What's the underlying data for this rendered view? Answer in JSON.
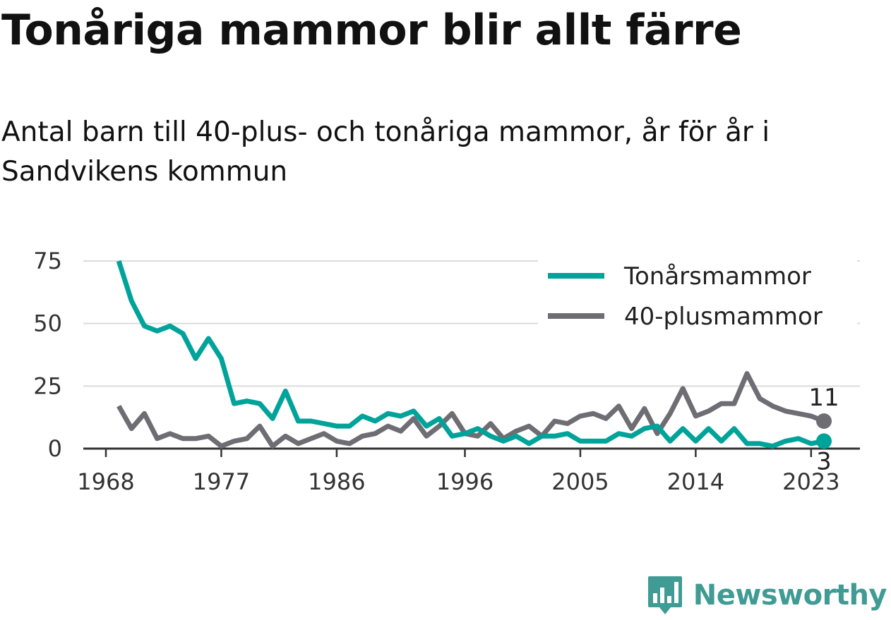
{
  "title": "Tonåriga mammor blir allt färre",
  "subtitle": "Antal barn till 40-plus- och tonåriga mammor, år för år i Sandvikens kommun",
  "brand": {
    "name": "Newsworthy",
    "icon": "newsworthy-logo-icon"
  },
  "colors": {
    "teen": "#00a39a",
    "plus40": "#6e6d73",
    "grid": "#dcdcdc",
    "axis": "#333333"
  },
  "chart_data": {
    "type": "line",
    "x": [
      1969,
      1970,
      1971,
      1972,
      1973,
      1974,
      1975,
      1976,
      1977,
      1978,
      1979,
      1980,
      1981,
      1982,
      1983,
      1984,
      1985,
      1986,
      1987,
      1988,
      1989,
      1990,
      1991,
      1992,
      1993,
      1994,
      1995,
      1996,
      1997,
      1998,
      1999,
      2000,
      2001,
      2002,
      2003,
      2004,
      2005,
      2006,
      2007,
      2008,
      2009,
      2010,
      2011,
      2012,
      2013,
      2014,
      2015,
      2016,
      2017,
      2018,
      2019,
      2020,
      2021,
      2022,
      2023,
      2024
    ],
    "x_ticks": [
      1968,
      1977,
      1986,
      1996,
      2005,
      2014,
      2023
    ],
    "y_ticks": [
      0,
      25,
      50,
      75
    ],
    "xlim": [
      1968,
      2025
    ],
    "ylim": [
      0,
      75
    ],
    "legend_position": "top-right",
    "grid": true,
    "series": [
      {
        "name": "Tonårsmammor",
        "key": "teen",
        "values": [
          75,
          59,
          49,
          47,
          49,
          46,
          36,
          44,
          36,
          18,
          19,
          18,
          12,
          23,
          11,
          11,
          10,
          9,
          9,
          13,
          11,
          14,
          13,
          15,
          9,
          12,
          5,
          6,
          8,
          5,
          3,
          5,
          2,
          5,
          5,
          6,
          3,
          3,
          3,
          6,
          5,
          8,
          9,
          3,
          8,
          3,
          8,
          3,
          8,
          2,
          2,
          1,
          3,
          4,
          2,
          3
        ],
        "end_label": "3"
      },
      {
        "name": "40-plusmammor",
        "key": "plus40",
        "values": [
          17,
          8,
          14,
          4,
          6,
          4,
          4,
          5,
          1,
          3,
          4,
          9,
          1,
          5,
          2,
          4,
          6,
          3,
          2,
          5,
          6,
          9,
          7,
          12,
          5,
          9,
          14,
          6,
          5,
          10,
          4,
          7,
          9,
          5,
          11,
          10,
          13,
          14,
          12,
          17,
          8,
          16,
          6,
          14,
          24,
          13,
          15,
          18,
          18,
          30,
          20,
          17,
          15,
          14,
          13,
          11
        ],
        "end_label": "11"
      }
    ]
  }
}
